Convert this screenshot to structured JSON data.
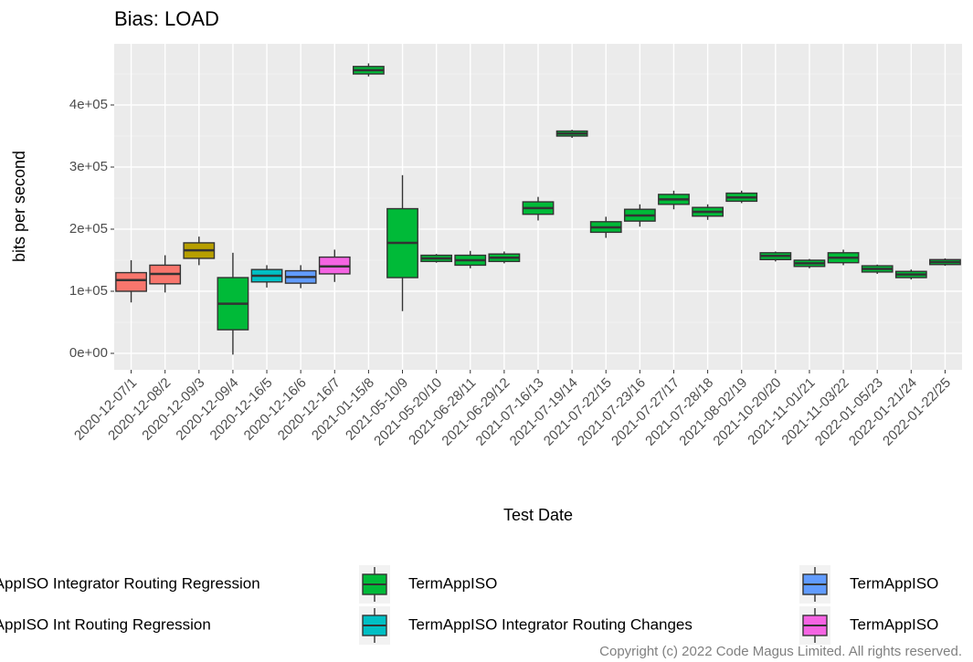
{
  "chart_data": {
    "type": "boxplot",
    "title": "Bias: LOAD",
    "x_label": "Test Date",
    "y_label": "bits per second",
    "categories": [
      "2020-12-07/1",
      "2020-12-08/2",
      "2020-12-09/3",
      "2020-12-09/4",
      "2020-12-16/5",
      "2020-12-16/6",
      "2020-12-16/7",
      "2021-01-15/8",
      "2021-05-10/9",
      "2021-05-20/10",
      "2021-06-28/11",
      "2021-06-29/12",
      "2021-07-16/13",
      "2021-07-19/14",
      "2021-07-22/15",
      "2021-07-23/16",
      "2021-07-27/17",
      "2021-07-28/18",
      "2021-08-02/19",
      "2021-10-20/20",
      "2021-11-01/21",
      "2021-11-03/22",
      "2022-01-05/23",
      "2022-01-21/24",
      "2022-01-22/25"
    ],
    "series": [
      {
        "name": "TermAppISO Integrator Routing Regression",
        "color": "#F8766D"
      },
      {
        "name": "TermAppISO Int Routing Regression",
        "color": "#B79F00"
      },
      {
        "name": "TermAppISO",
        "color": "#00BA38"
      },
      {
        "name": "TermAppISO Integrator Routing Changes",
        "color": "#00BFC4"
      },
      {
        "name": "TermAppISO",
        "color": "#619CFF"
      },
      {
        "name": "TermAppISO",
        "color": "#F564E3"
      }
    ],
    "group": [
      0,
      0,
      1,
      2,
      3,
      4,
      5,
      2,
      2,
      2,
      2,
      2,
      2,
      2,
      2,
      2,
      2,
      2,
      2,
      2,
      2,
      2,
      2,
      2,
      2
    ],
    "low": [
      82000,
      98000,
      142000,
      -2000,
      106000,
      105000,
      115000,
      446000,
      68000,
      146000,
      137000,
      145000,
      214000,
      347000,
      186000,
      204000,
      232000,
      215000,
      242000,
      148000,
      137000,
      142000,
      128000,
      119000,
      141000
    ],
    "q1": [
      100000,
      112000,
      153000,
      38000,
      115000,
      113000,
      128000,
      450000,
      122000,
      148000,
      142000,
      148000,
      224000,
      350000,
      195000,
      213000,
      240000,
      221000,
      245000,
      151000,
      140000,
      146000,
      131000,
      122000,
      143000
    ],
    "median": [
      118000,
      128000,
      166000,
      80000,
      125000,
      123000,
      140000,
      456000,
      178000,
      153000,
      150000,
      154000,
      234000,
      354000,
      203000,
      222000,
      248000,
      228000,
      251000,
      157000,
      145000,
      154000,
      136000,
      127000,
      147000
    ],
    "q3": [
      130000,
      142000,
      178000,
      122000,
      135000,
      133000,
      155000,
      462000,
      233000,
      158000,
      158000,
      160000,
      244000,
      358000,
      212000,
      232000,
      256000,
      235000,
      258000,
      162000,
      150000,
      162000,
      141000,
      132000,
      151000
    ],
    "high": [
      150000,
      158000,
      188000,
      162000,
      142000,
      142000,
      167000,
      467000,
      287000,
      160000,
      165000,
      164000,
      252000,
      360000,
      220000,
      240000,
      262000,
      240000,
      262000,
      164000,
      152000,
      167000,
      143000,
      135000,
      153000
    ],
    "ylim": [
      -26500,
      498500
    ],
    "yticks": [
      {
        "value": 0,
        "label": "0e+00"
      },
      {
        "value": 100000,
        "label": "1e+05"
      },
      {
        "value": 200000,
        "label": "2e+05"
      },
      {
        "value": 300000,
        "label": "3e+05"
      },
      {
        "value": 400000,
        "label": "4e+05"
      }
    ],
    "grid": true
  },
  "footer": "Copyright (c) 2022 Code Magus Limited. All rights reserved."
}
